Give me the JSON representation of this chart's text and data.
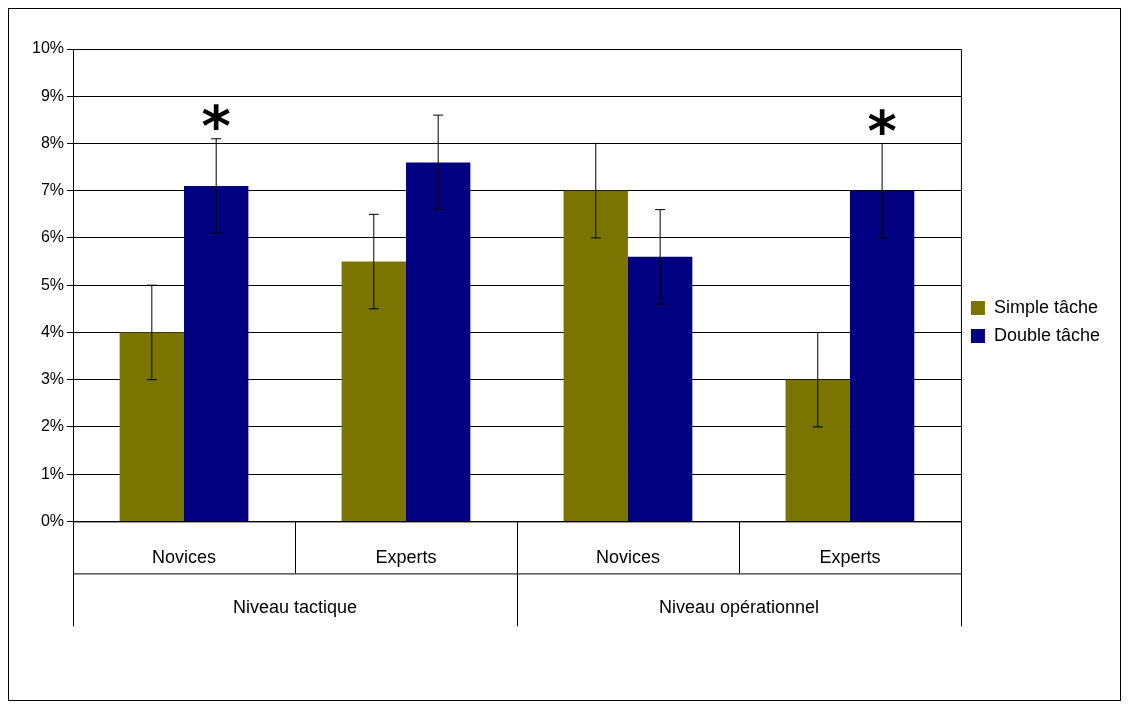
{
  "chart_data": {
    "type": "bar",
    "categories": [
      "Novices",
      "Experts",
      "Novices",
      "Experts"
    ],
    "series": [
      {
        "name": "Simple tâche",
        "color": "#7a7400",
        "values": [
          4,
          5.5,
          7,
          3
        ],
        "errors": [
          1,
          1,
          1,
          1
        ]
      },
      {
        "name": "Double tâche",
        "color": "#000080",
        "values": [
          7.1,
          7.6,
          5.6,
          7
        ],
        "errors": [
          1,
          1,
          1,
          1
        ]
      }
    ],
    "ylim": [
      0,
      10
    ],
    "yticks": [
      {
        "value": 0,
        "label": "0%"
      },
      {
        "value": 1,
        "label": "1%"
      },
      {
        "value": 2,
        "label": "2%"
      },
      {
        "value": 3,
        "label": "3%"
      },
      {
        "value": 4,
        "label": "4%"
      },
      {
        "value": 5,
        "label": "5%"
      },
      {
        "value": 6,
        "label": "6%"
      },
      {
        "value": 7,
        "label": "7%"
      },
      {
        "value": 8,
        "label": "8%"
      },
      {
        "value": 9,
        "label": "9%"
      },
      {
        "value": 10,
        "label": "10%"
      }
    ],
    "grid": "y",
    "legend": "right",
    "annotations": [
      "Niveau tactique",
      "Niveau opérationnel",
      "*",
      "*"
    ]
  }
}
